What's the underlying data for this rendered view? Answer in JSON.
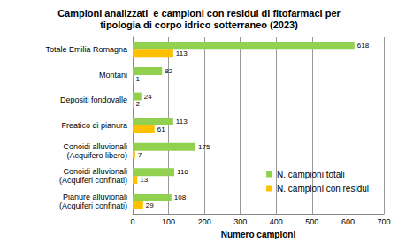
{
  "chart_data": {
    "type": "bar",
    "orientation": "horizontal",
    "title": "Campioni analizzati  e campioni con residui di fitofarmaci per\ntipologia di corpo idrico sotterraneo (2023)",
    "x_label": "Numero campioni",
    "categories": [
      "Totale Emilia Romagna",
      "Montani",
      "Depositi fondovalle",
      "Freatico di pianura",
      "Conoidi alluvionali\n(Acquifero libero)",
      "Conoidi alluvionali\n(Acquiferi confinati)",
      "Pianure alluvionali\n(Acquiferi confinati)"
    ],
    "series": [
      {
        "name": "N. campioni totali",
        "color": "#92d050",
        "values": [
          618,
          82,
          24,
          113,
          175,
          116,
          108
        ]
      },
      {
        "name": "N. campioni con residui",
        "color": "#ffc000",
        "values": [
          113,
          1,
          2,
          61,
          7,
          13,
          29
        ]
      }
    ],
    "xlim": [
      0,
      700
    ],
    "xticks": [
      0,
      100,
      200,
      300,
      400,
      500,
      600,
      700
    ],
    "grid": true,
    "legend": "lower right",
    "data_labels": true
  }
}
